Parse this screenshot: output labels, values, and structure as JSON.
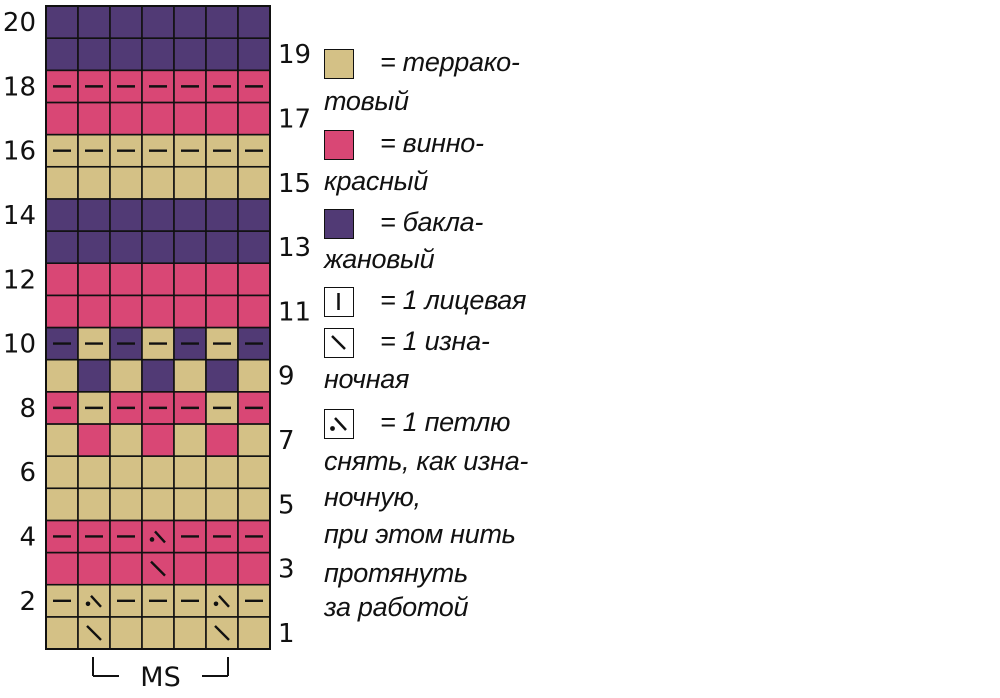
{
  "colors": {
    "terracotta": "#D4C186",
    "wine": "#D94775",
    "aubergine": "#513A75",
    "grid": "#111111"
  },
  "chart": {
    "columns": 7,
    "repeat_label": "MS",
    "even_row_numbers": [
      "2",
      "4",
      "6",
      "8",
      "10",
      "12",
      "14",
      "16",
      "18",
      "20"
    ],
    "odd_row_numbers": [
      "1",
      "3",
      "5",
      "7",
      "9",
      "11",
      "13",
      "15",
      "17",
      "19"
    ],
    "rows_bottom_to_top": [
      {
        "row": "1",
        "cells": [
          [
            "T",
            ""
          ],
          [
            "T",
            "purl"
          ],
          [
            "T",
            ""
          ],
          [
            "T",
            ""
          ],
          [
            "T",
            ""
          ],
          [
            "T",
            "purl"
          ],
          [
            "T",
            ""
          ]
        ]
      },
      {
        "row": "2",
        "cells": [
          [
            "T",
            "dash"
          ],
          [
            "T",
            "slip"
          ],
          [
            "T",
            "dash"
          ],
          [
            "T",
            "dash"
          ],
          [
            "T",
            "dash"
          ],
          [
            "T",
            "slip"
          ],
          [
            "T",
            "dash"
          ]
        ]
      },
      {
        "row": "3",
        "cells": [
          [
            "W",
            ""
          ],
          [
            "W",
            ""
          ],
          [
            "W",
            ""
          ],
          [
            "W",
            "purl"
          ],
          [
            "W",
            ""
          ],
          [
            "W",
            ""
          ],
          [
            "W",
            ""
          ]
        ]
      },
      {
        "row": "4",
        "cells": [
          [
            "W",
            "dash"
          ],
          [
            "W",
            "dash"
          ],
          [
            "W",
            "dash"
          ],
          [
            "W",
            "slip"
          ],
          [
            "W",
            "dash"
          ],
          [
            "W",
            "dash"
          ],
          [
            "W",
            "dash"
          ]
        ]
      },
      {
        "row": "5",
        "cells": [
          [
            "T",
            ""
          ],
          [
            "T",
            ""
          ],
          [
            "T",
            ""
          ],
          [
            "T",
            ""
          ],
          [
            "T",
            ""
          ],
          [
            "T",
            ""
          ],
          [
            "T",
            ""
          ]
        ]
      },
      {
        "row": "6",
        "cells": [
          [
            "T",
            ""
          ],
          [
            "T",
            ""
          ],
          [
            "T",
            ""
          ],
          [
            "T",
            ""
          ],
          [
            "T",
            ""
          ],
          [
            "T",
            ""
          ],
          [
            "T",
            ""
          ]
        ]
      },
      {
        "row": "7",
        "cells": [
          [
            "T",
            ""
          ],
          [
            "W",
            ""
          ],
          [
            "T",
            ""
          ],
          [
            "W",
            ""
          ],
          [
            "T",
            ""
          ],
          [
            "W",
            ""
          ],
          [
            "T",
            ""
          ]
        ]
      },
      {
        "row": "8",
        "cells": [
          [
            "W",
            "dash"
          ],
          [
            "T",
            "dash"
          ],
          [
            "W",
            "dash"
          ],
          [
            "W",
            "dash"
          ],
          [
            "W",
            "dash"
          ],
          [
            "T",
            "dash"
          ],
          [
            "W",
            "dash"
          ]
        ]
      },
      {
        "row": "9",
        "cells": [
          [
            "T",
            ""
          ],
          [
            "A",
            ""
          ],
          [
            "T",
            ""
          ],
          [
            "A",
            ""
          ],
          [
            "T",
            ""
          ],
          [
            "A",
            ""
          ],
          [
            "T",
            ""
          ]
        ]
      },
      {
        "row": "10",
        "cells": [
          [
            "A",
            "dash"
          ],
          [
            "T",
            "dash"
          ],
          [
            "A",
            "dash"
          ],
          [
            "T",
            "dash"
          ],
          [
            "A",
            "dash"
          ],
          [
            "T",
            "dash"
          ],
          [
            "A",
            "dash"
          ]
        ]
      },
      {
        "row": "11",
        "cells": [
          [
            "W",
            ""
          ],
          [
            "W",
            ""
          ],
          [
            "W",
            ""
          ],
          [
            "W",
            ""
          ],
          [
            "W",
            ""
          ],
          [
            "W",
            ""
          ],
          [
            "W",
            ""
          ]
        ]
      },
      {
        "row": "12",
        "cells": [
          [
            "W",
            ""
          ],
          [
            "W",
            ""
          ],
          [
            "W",
            ""
          ],
          [
            "W",
            ""
          ],
          [
            "W",
            ""
          ],
          [
            "W",
            ""
          ],
          [
            "W",
            ""
          ]
        ]
      },
      {
        "row": "13",
        "cells": [
          [
            "A",
            ""
          ],
          [
            "A",
            ""
          ],
          [
            "A",
            ""
          ],
          [
            "A",
            ""
          ],
          [
            "A",
            ""
          ],
          [
            "A",
            ""
          ],
          [
            "A",
            ""
          ]
        ]
      },
      {
        "row": "14",
        "cells": [
          [
            "A",
            ""
          ],
          [
            "A",
            ""
          ],
          [
            "A",
            ""
          ],
          [
            "A",
            ""
          ],
          [
            "A",
            ""
          ],
          [
            "A",
            ""
          ],
          [
            "A",
            ""
          ]
        ]
      },
      {
        "row": "15",
        "cells": [
          [
            "T",
            ""
          ],
          [
            "T",
            ""
          ],
          [
            "T",
            ""
          ],
          [
            "T",
            ""
          ],
          [
            "T",
            ""
          ],
          [
            "T",
            ""
          ],
          [
            "T",
            ""
          ]
        ]
      },
      {
        "row": "16",
        "cells": [
          [
            "T",
            "dash"
          ],
          [
            "T",
            "dash"
          ],
          [
            "T",
            "dash"
          ],
          [
            "T",
            "dash"
          ],
          [
            "T",
            "dash"
          ],
          [
            "T",
            "dash"
          ],
          [
            "T",
            "dash"
          ]
        ]
      },
      {
        "row": "17",
        "cells": [
          [
            "W",
            ""
          ],
          [
            "W",
            ""
          ],
          [
            "W",
            ""
          ],
          [
            "W",
            ""
          ],
          [
            "W",
            ""
          ],
          [
            "W",
            ""
          ],
          [
            "W",
            ""
          ]
        ]
      },
      {
        "row": "18",
        "cells": [
          [
            "W",
            "dash"
          ],
          [
            "W",
            "dash"
          ],
          [
            "W",
            "dash"
          ],
          [
            "W",
            "dash"
          ],
          [
            "W",
            "dash"
          ],
          [
            "W",
            "dash"
          ],
          [
            "W",
            "dash"
          ]
        ]
      },
      {
        "row": "19",
        "cells": [
          [
            "A",
            ""
          ],
          [
            "A",
            ""
          ],
          [
            "A",
            ""
          ],
          [
            "A",
            ""
          ],
          [
            "A",
            ""
          ],
          [
            "A",
            ""
          ],
          [
            "A",
            ""
          ]
        ]
      },
      {
        "row": "20",
        "cells": [
          [
            "A",
            ""
          ],
          [
            "A",
            ""
          ],
          [
            "A",
            ""
          ],
          [
            "A",
            ""
          ],
          [
            "A",
            ""
          ],
          [
            "A",
            ""
          ],
          [
            "A",
            ""
          ]
        ]
      }
    ]
  },
  "legend": {
    "terracotta": {
      "eq": "= терракo-",
      "cont": "товый",
      "icon": "terracotta-swatch-icon"
    },
    "wine": {
      "eq": "= винно-",
      "cont": "красный",
      "icon": "wine-swatch-icon"
    },
    "aubergine": {
      "eq": "= бакла-",
      "cont": "жановый",
      "icon": "aubergine-swatch-icon"
    },
    "knit": {
      "eq": "= 1 лицевая",
      "icon": "knit-stitch-icon"
    },
    "purl": {
      "eq": "= 1 изна-",
      "cont": "ночная",
      "icon": "purl-stitch-icon"
    },
    "slip": {
      "eq": "= 1 петлю",
      "lines": [
        "снять, как изна-",
        "ночную,",
        "при этом нить",
        "протянуть",
        "за работой"
      ],
      "icon": "slip-stitch-icon"
    }
  }
}
